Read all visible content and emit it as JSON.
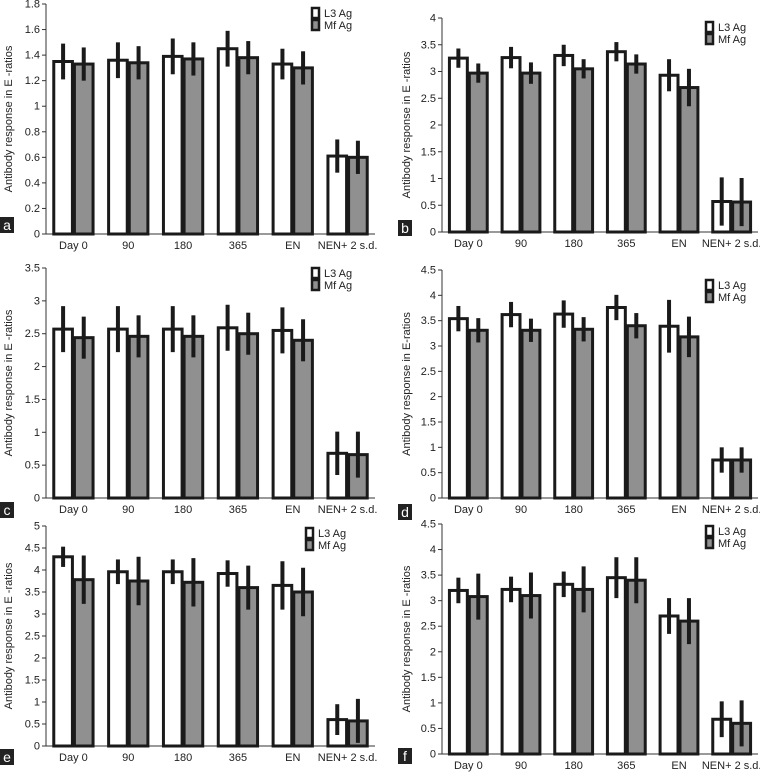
{
  "series_names": [
    "L3 Ag",
    "Mf Ag"
  ],
  "colors": {
    "l3": "#ffffff",
    "mf": "#909090",
    "edge": "#1a1a1a"
  },
  "chart_data": [
    {
      "type": "bar",
      "panel": "a",
      "ylabel": "Antibody response in E -ratios",
      "ylim": [
        0,
        1.8
      ],
      "yticks": [
        "0",
        "0.2",
        "0.4",
        "0.6",
        "0.8",
        "1",
        "1.2",
        "1.4",
        "1.6",
        "1.8"
      ],
      "categories": [
        "Day 0",
        "90",
        "180",
        "365",
        "EN",
        "NEN+ 2 s.d."
      ],
      "series": [
        {
          "name": "L3 Ag",
          "values": [
            1.35,
            1.36,
            1.39,
            1.45,
            1.33,
            0.61
          ],
          "err": [
            0.14,
            0.14,
            0.14,
            0.14,
            0.12,
            0.13
          ]
        },
        {
          "name": "Mf Ag",
          "values": [
            1.33,
            1.34,
            1.37,
            1.38,
            1.3,
            0.6
          ],
          "err": [
            0.13,
            0.13,
            0.13,
            0.13,
            0.13,
            0.13
          ]
        }
      ]
    },
    {
      "type": "bar",
      "panel": "b",
      "ylabel": "Antibody response in E -ratios",
      "ylim": [
        0,
        4
      ],
      "yticks": [
        "0",
        "0.5",
        "1",
        "1.5",
        "2",
        "2.5",
        "3",
        "3.5",
        "4"
      ],
      "categories": [
        "Day 0",
        "90",
        "180",
        "365",
        "EN",
        "NEN+ 2 s.d."
      ],
      "series": [
        {
          "name": "L3 Ag",
          "values": [
            3.25,
            3.26,
            3.3,
            3.37,
            2.93,
            0.57
          ],
          "err": [
            0.18,
            0.2,
            0.2,
            0.18,
            0.3,
            0.45
          ]
        },
        {
          "name": "Mf Ag",
          "values": [
            2.97,
            2.97,
            3.05,
            3.14,
            2.7,
            0.56
          ],
          "err": [
            0.18,
            0.2,
            0.18,
            0.18,
            0.35,
            0.45
          ]
        }
      ]
    },
    {
      "type": "bar",
      "panel": "c",
      "ylabel": "Antibody response in E -ratios",
      "ylim": [
        0,
        3.5
      ],
      "yticks": [
        "0",
        "0.5",
        "1",
        "1.5",
        "2",
        "2.5",
        "3",
        "3.5"
      ],
      "categories": [
        "Day 0",
        "90",
        "180",
        "365",
        "EN",
        "NEN+ 2 s.d."
      ],
      "series": [
        {
          "name": "L3 Ag",
          "values": [
            2.57,
            2.57,
            2.57,
            2.59,
            2.55,
            0.68
          ],
          "err": [
            0.35,
            0.35,
            0.35,
            0.35,
            0.35,
            0.33
          ]
        },
        {
          "name": "Mf Ag",
          "values": [
            2.44,
            2.46,
            2.46,
            2.5,
            2.4,
            0.66
          ],
          "err": [
            0.32,
            0.32,
            0.32,
            0.32,
            0.32,
            0.35
          ]
        }
      ]
    },
    {
      "type": "bar",
      "panel": "d",
      "ylabel": "Antibody response in E-ratios",
      "ylim": [
        0,
        4.5
      ],
      "yticks": [
        "0",
        "0.5",
        "1",
        "1.5",
        "2",
        "2.5",
        "3",
        "3.5",
        "4",
        "4.5"
      ],
      "categories": [
        "Day 0",
        "90",
        "180",
        "365",
        "EN",
        "NEN+ 2 s.d."
      ],
      "series": [
        {
          "name": "L3 Ag",
          "values": [
            3.54,
            3.62,
            3.63,
            3.76,
            3.39,
            0.75
          ],
          "err": [
            0.25,
            0.25,
            0.27,
            0.25,
            0.52,
            0.25
          ]
        },
        {
          "name": "Mf Ag",
          "values": [
            3.31,
            3.31,
            3.33,
            3.4,
            3.18,
            0.75
          ],
          "err": [
            0.24,
            0.23,
            0.24,
            0.25,
            0.4,
            0.25
          ]
        }
      ]
    },
    {
      "type": "bar",
      "panel": "e",
      "ylabel": "Antibody response in E -ratios",
      "ylim": [
        0,
        5
      ],
      "yticks": [
        "0",
        "0.5",
        "1",
        "1.5",
        "2",
        "2.5",
        "3",
        "3.5",
        "4",
        "4.5",
        "5"
      ],
      "categories": [
        "Day 0",
        "90",
        "180",
        "365",
        "EN",
        "NEN+ 2 s.d."
      ],
      "series": [
        {
          "name": "L3 Ag",
          "values": [
            4.3,
            3.96,
            3.96,
            3.92,
            3.65,
            0.6
          ],
          "err": [
            0.23,
            0.28,
            0.28,
            0.3,
            0.55,
            0.35
          ]
        },
        {
          "name": "Mf Ag",
          "values": [
            3.78,
            3.75,
            3.72,
            3.6,
            3.5,
            0.57
          ],
          "err": [
            0.55,
            0.55,
            0.55,
            0.5,
            0.55,
            0.5
          ]
        }
      ]
    },
    {
      "type": "bar",
      "panel": "f",
      "ylabel": "Antibody response in E -ratios",
      "ylim": [
        0,
        4.5
      ],
      "yticks": [
        "0",
        "0.5",
        "1",
        "1.5",
        "2",
        "2.5",
        "3",
        "3.5",
        "4",
        "4.5"
      ],
      "categories": [
        "Day 0",
        "90",
        "180",
        "365",
        "EN",
        "NEN+ 2 s.d."
      ],
      "series": [
        {
          "name": "L3 Ag",
          "values": [
            3.2,
            3.22,
            3.32,
            3.45,
            2.7,
            0.68
          ],
          "err": [
            0.25,
            0.25,
            0.25,
            0.4,
            0.35,
            0.35
          ]
        },
        {
          "name": "Mf Ag",
          "values": [
            3.08,
            3.1,
            3.22,
            3.4,
            2.6,
            0.6
          ],
          "err": [
            0.45,
            0.45,
            0.45,
            0.45,
            0.45,
            0.45
          ]
        }
      ]
    }
  ]
}
